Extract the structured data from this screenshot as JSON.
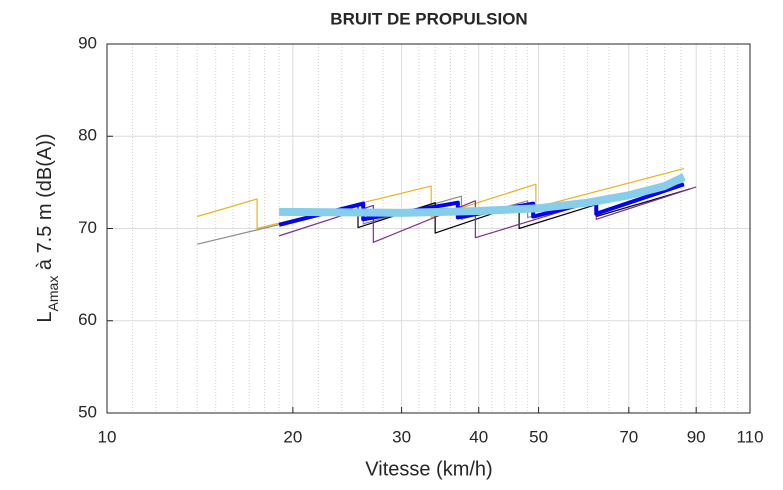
{
  "chart_data": {
    "type": "line",
    "title": "BRUIT DE PROPULSION",
    "xlabel": "Vitesse (km/h)",
    "ylabel": {
      "main": "L",
      "sub": "Amax",
      "rest": " à 7.5 m (dB(A))"
    },
    "xscale": "log",
    "xlim": [
      10,
      110
    ],
    "ylim": [
      50,
      90
    ],
    "xticks": [
      10,
      20,
      30,
      40,
      50,
      70,
      90,
      110
    ],
    "yticks": [
      50,
      60,
      70,
      80,
      90
    ],
    "xminorticks": [
      11,
      12,
      13,
      14,
      15,
      16,
      17,
      18,
      19,
      22,
      24,
      26,
      28,
      32,
      34,
      36,
      38,
      42,
      44,
      46,
      48,
      55,
      60,
      65,
      75,
      80,
      85,
      95,
      100,
      105
    ],
    "grid": true,
    "series": [
      {
        "color": "#edb120",
        "width": 1.2,
        "x": [
          14,
          17.5,
          17.5,
          33.5,
          33.5,
          49.5,
          49.5,
          86
        ],
        "values": [
          71.3,
          73.2,
          70,
          74.6,
          71.2,
          74.8,
          72.3,
          76.5
        ]
      },
      {
        "color": "#8c8c8c",
        "width": 1.2,
        "x": [
          14,
          26,
          26,
          37.5,
          37.5,
          48,
          48,
          62
        ],
        "values": [
          68.3,
          72.6,
          70.5,
          73.5,
          71,
          73,
          71.2,
          72.8
        ]
      },
      {
        "color": "#000000",
        "width": 1.2,
        "x": [
          25.5,
          25.5,
          34,
          34,
          46.5,
          46.5,
          62,
          62,
          88
        ],
        "values": [
          72.6,
          70.1,
          72.8,
          69.5,
          72.6,
          70,
          72.6,
          71.3,
          74.3
        ]
      },
      {
        "color": "#7e2f8e",
        "width": 1.2,
        "x": [
          19,
          27,
          27,
          39.5,
          39.5,
          62,
          62,
          90
        ],
        "values": [
          69.2,
          72.5,
          68.5,
          73,
          69,
          73,
          71,
          74.5
        ]
      },
      {
        "color": "#0000ff",
        "width": 4,
        "x": [
          19,
          26,
          26,
          37,
          37,
          49,
          49,
          62,
          62,
          86
        ],
        "values": [
          70.4,
          72.7,
          71,
          72.8,
          71.2,
          72.7,
          71.3,
          73,
          71.6,
          74.8
        ]
      },
      {
        "color": "#87ceeb",
        "width": 8,
        "x": [
          19,
          30,
          40,
          50,
          60,
          70,
          80,
          86
        ],
        "values": [
          71.8,
          71.7,
          71.9,
          72.2,
          72.8,
          73.6,
          74.6,
          75.6
        ]
      }
    ]
  }
}
